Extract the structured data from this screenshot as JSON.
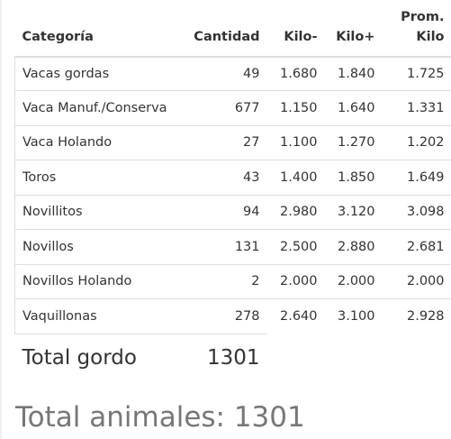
{
  "table": {
    "headers": {
      "category": "Categoría",
      "quantity": "Cantidad",
      "kilo_min": "Kilo-",
      "kilo_max": "Kilo+",
      "prom_line1": "Prom.",
      "prom_line2": "Kilo"
    },
    "rows": [
      {
        "category": "Vacas gordas",
        "quantity": "49",
        "kilo_min": "1.680",
        "kilo_max": "1.840",
        "prom": "1.725"
      },
      {
        "category": "Vaca Manuf./Conserva",
        "quantity": "677",
        "kilo_min": "1.150",
        "kilo_max": "1.640",
        "prom": "1.331"
      },
      {
        "category": "Vaca Holando",
        "quantity": "27",
        "kilo_min": "1.100",
        "kilo_max": "1.270",
        "prom": "1.202"
      },
      {
        "category": "Toros",
        "quantity": "43",
        "kilo_min": "1.400",
        "kilo_max": "1.850",
        "prom": "1.649"
      },
      {
        "category": "Novillitos",
        "quantity": "94",
        "kilo_min": "2.980",
        "kilo_max": "3.120",
        "prom": "3.098"
      },
      {
        "category": "Novillos",
        "quantity": "131",
        "kilo_min": "2.500",
        "kilo_max": "2.880",
        "prom": "2.681"
      },
      {
        "category": "Novillos Holando",
        "quantity": "2",
        "kilo_min": "2.000",
        "kilo_max": "2.000",
        "prom": "2.000"
      },
      {
        "category": "Vaquillonas",
        "quantity": "278",
        "kilo_min": "2.640",
        "kilo_max": "3.100",
        "prom": "2.928"
      }
    ],
    "total": {
      "label": "Total gordo",
      "value": "1301"
    }
  },
  "summary": {
    "total_animals": "Total animales: 1301"
  }
}
